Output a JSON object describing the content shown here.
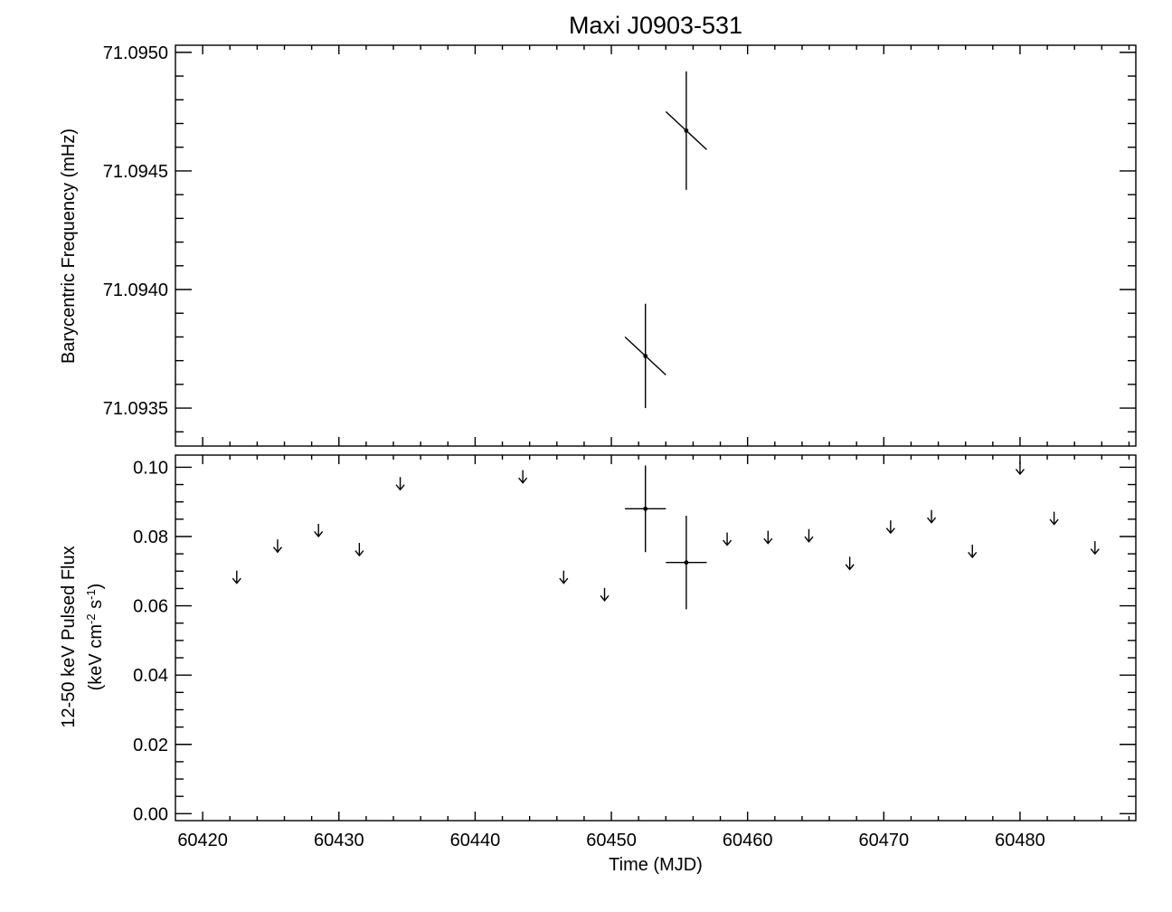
{
  "title": "Maxi J0903-531",
  "chart_data": [
    {
      "type": "scatter",
      "panel": "top",
      "title": "Maxi J0903-531",
      "xlabel": "",
      "ylabel": "Barycentric Frequency (mHz)",
      "xlim": [
        60418,
        60488.5
      ],
      "ylim": [
        71.09334,
        71.09503
      ],
      "yticks": [
        71.0935,
        71.094,
        71.0945,
        71.095
      ],
      "ytick_labels": [
        "71.0935",
        "71.0940",
        "71.0945",
        "71.0950"
      ],
      "grid": false,
      "points": [
        {
          "x": 60452.5,
          "y": 71.09372,
          "yerr": 0.00022,
          "slope": {
            "x0": 60451.0,
            "y0": 71.0938,
            "x1": 60454.0,
            "y1": 71.09364
          }
        },
        {
          "x": 60455.5,
          "y": 71.09467,
          "yerr": 0.00025,
          "slope": {
            "x0": 60454.0,
            "y0": 71.09475,
            "x1": 60457.0,
            "y1": 71.09459
          }
        }
      ]
    },
    {
      "type": "scatter",
      "panel": "bottom",
      "xlabel": "Time (MJD)",
      "ylabel_line1": "12-50 keV Pulsed Flux",
      "ylabel_line2": "(keV cm-2 s-1)",
      "xlim": [
        60418,
        60488.5
      ],
      "ylim": [
        -0.002,
        0.1035
      ],
      "xticks": [
        60420,
        60430,
        60440,
        60450,
        60460,
        60470,
        60480
      ],
      "xtick_labels": [
        "60420",
        "60430",
        "60440",
        "60450",
        "60460",
        "60470",
        "60480"
      ],
      "yticks": [
        0.0,
        0.02,
        0.04,
        0.06,
        0.08,
        0.1
      ],
      "ytick_labels": [
        "0.00",
        "0.02",
        "0.04",
        "0.06",
        "0.08",
        "0.10"
      ],
      "grid": false,
      "detections": [
        {
          "x": 60452.5,
          "y": 0.088,
          "xerr": 1.5,
          "yerr": 0.0125
        },
        {
          "x": 60455.5,
          "y": 0.0725,
          "xerr": 1.5,
          "yerr": 0.0135
        }
      ],
      "upper_limits": [
        {
          "x": 60422.5,
          "y": 0.0665
        },
        {
          "x": 60425.5,
          "y": 0.0755
        },
        {
          "x": 60428.5,
          "y": 0.08
        },
        {
          "x": 60431.5,
          "y": 0.0745
        },
        {
          "x": 60434.5,
          "y": 0.0935
        },
        {
          "x": 60443.5,
          "y": 0.0955
        },
        {
          "x": 60446.5,
          "y": 0.0665
        },
        {
          "x": 60449.5,
          "y": 0.0615
        },
        {
          "x": 60458.5,
          "y": 0.0775
        },
        {
          "x": 60461.5,
          "y": 0.078
        },
        {
          "x": 60464.5,
          "y": 0.0785
        },
        {
          "x": 60467.5,
          "y": 0.0705
        },
        {
          "x": 60470.5,
          "y": 0.081
        },
        {
          "x": 60473.5,
          "y": 0.084
        },
        {
          "x": 60476.5,
          "y": 0.074
        },
        {
          "x": 60480.0,
          "y": 0.098
        },
        {
          "x": 60482.5,
          "y": 0.0835
        },
        {
          "x": 60485.5,
          "y": 0.075
        }
      ]
    }
  ]
}
